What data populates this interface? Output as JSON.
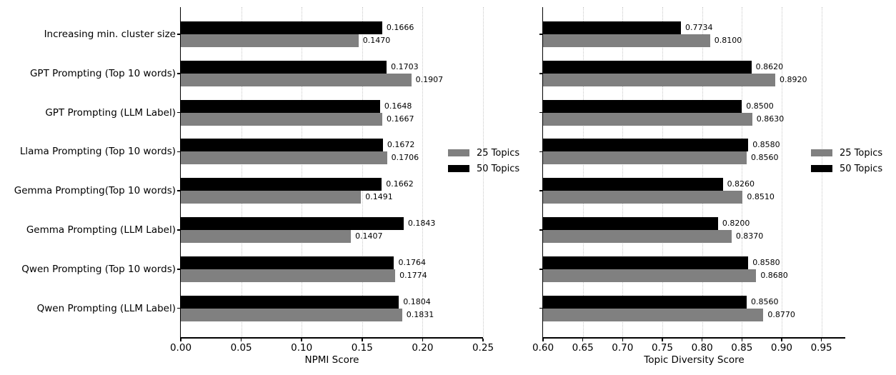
{
  "figure": {
    "background": "#ffffff",
    "bar_colors": {
      "25_topics": "#808080",
      "50_topics": "#000000"
    },
    "gridline_color": "#c8c8c8"
  },
  "legend": {
    "items": [
      {
        "label": "25 Topics",
        "color": "#808080"
      },
      {
        "label": "50 Topics",
        "color": "#000000"
      }
    ]
  },
  "chart_data": [
    {
      "type": "bar",
      "orientation": "horizontal",
      "xlabel": "NPMI Score",
      "xlim": [
        0.0,
        0.25
      ],
      "xticks": [
        "0.00",
        "0.05",
        "0.10",
        "0.15",
        "0.20",
        "0.25"
      ],
      "grid": "dotted-vertical",
      "legend_position": "center-right-outside",
      "categories": [
        "Increasing min. cluster size",
        "GPT Prompting (Top 10 words)",
        "GPT Prompting (LLM Label)",
        "Llama Prompting (Top 10 words)",
        "Gemma Prompting(Top 10 words)",
        "Gemma Prompting (LLM Label)",
        "Qwen Prompting (Top 10 words)",
        "Qwen Prompting (LLM Label)"
      ],
      "series": [
        {
          "name": "50 Topics",
          "color": "#000000",
          "values": [
            0.1666,
            0.1703,
            0.1648,
            0.1672,
            0.1662,
            0.1843,
            0.1764,
            0.1804
          ],
          "labels": [
            "0.1666",
            "0.1703",
            "0.1648",
            "0.1672",
            "0.1662",
            "0.1843",
            "0.1764",
            "0.1804"
          ]
        },
        {
          "name": "25 Topics",
          "color": "#808080",
          "values": [
            0.147,
            0.1907,
            0.1667,
            0.1706,
            0.1491,
            0.1407,
            0.1774,
            0.1831
          ],
          "labels": [
            "0.1470",
            "0.1907",
            "0.1667",
            "0.1706",
            "0.1491",
            "0.1407",
            "0.1774",
            "0.1831"
          ]
        }
      ]
    },
    {
      "type": "bar",
      "orientation": "horizontal",
      "xlabel": "Topic Diversity Score",
      "xlim": [
        0.6,
        0.98
      ],
      "xticks": [
        "0.60",
        "0.65",
        "0.70",
        "0.75",
        "0.80",
        "0.85",
        "0.90",
        "0.95"
      ],
      "grid": "dotted-vertical",
      "legend_position": "center-right-outside",
      "categories": [
        "Increasing min. cluster size",
        "GPT Prompting (Top 10 words)",
        "GPT Prompting (LLM Label)",
        "Llama Prompting (Top 10 words)",
        "Gemma Prompting(Top 10 words)",
        "Gemma Prompting (LLM Label)",
        "Qwen Prompting (Top 10 words)",
        "Qwen Prompting (LLM Label)"
      ],
      "series": [
        {
          "name": "50 Topics",
          "color": "#000000",
          "values": [
            0.7734,
            0.862,
            0.85,
            0.858,
            0.826,
            0.82,
            0.858,
            0.856
          ],
          "labels": [
            "0.7734",
            "0.8620",
            "0.8500",
            "0.8580",
            "0.8260",
            "0.8200",
            "0.8580",
            "0.8560"
          ]
        },
        {
          "name": "25 Topics",
          "color": "#808080",
          "values": [
            0.81,
            0.892,
            0.863,
            0.856,
            0.851,
            0.837,
            0.868,
            0.877
          ],
          "labels": [
            "0.8100",
            "0.8920",
            "0.8630",
            "0.8560",
            "0.8510",
            "0.8370",
            "0.8680",
            "0.8770"
          ]
        }
      ]
    }
  ]
}
